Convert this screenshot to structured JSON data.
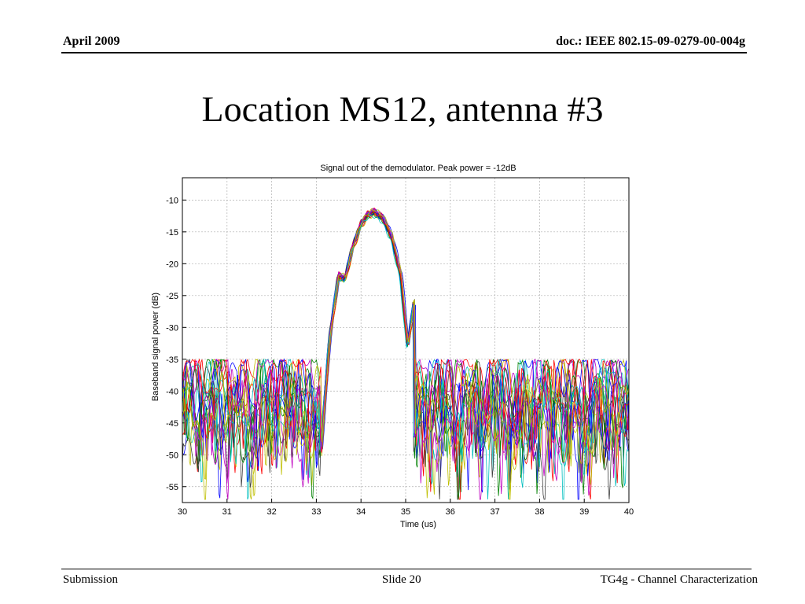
{
  "header": {
    "date": "April 2009",
    "doc_id": "doc.: IEEE 802.15-09-0279-00-004g"
  },
  "slide": {
    "title": "Location MS12, antenna #3"
  },
  "footer": {
    "left": "Submission",
    "center": "Slide 20",
    "right": "TG4g - Channel Characterization"
  },
  "chart_data": {
    "type": "line",
    "title": "Signal out of the demodulator. Peak power = -12dB",
    "xlabel": "Time (us)",
    "ylabel": "Baseband signal power (dB)",
    "xlim": [
      30,
      40
    ],
    "ylim": [
      -57.5,
      -6.5
    ],
    "xticks": [
      30,
      31,
      32,
      33,
      34,
      35,
      36,
      37,
      38,
      39,
      40
    ],
    "yticks": [
      -10,
      -15,
      -20,
      -25,
      -30,
      -35,
      -40,
      -45,
      -50,
      -55
    ],
    "grid": true,
    "peak_power_db": -12,
    "series_count": 20,
    "series_colors": [
      "#0000ff",
      "#008000",
      "#ff0000",
      "#00bfbf",
      "#bf00bf",
      "#bfbf00",
      "#404040",
      "#0000ff",
      "#008000",
      "#ff0000",
      "#00bfbf",
      "#bf00bf",
      "#bfbf00",
      "#404040",
      "#0000ff",
      "#008000",
      "#ff0000",
      "#00bfbf",
      "#bf00bf",
      "#bfbf00"
    ],
    "envelope": {
      "x": [
        33.1,
        33.3,
        33.5,
        33.65,
        33.8,
        34.0,
        34.15,
        34.3,
        34.5,
        34.7,
        34.9,
        35.05,
        35.2
      ],
      "y": [
        -50,
        -32,
        -22,
        -22.5,
        -18,
        -14,
        -12.5,
        -12,
        -13,
        -16,
        -22,
        -33,
        -26
      ]
    },
    "noise_floor_db": [
      -57,
      -35
    ]
  }
}
